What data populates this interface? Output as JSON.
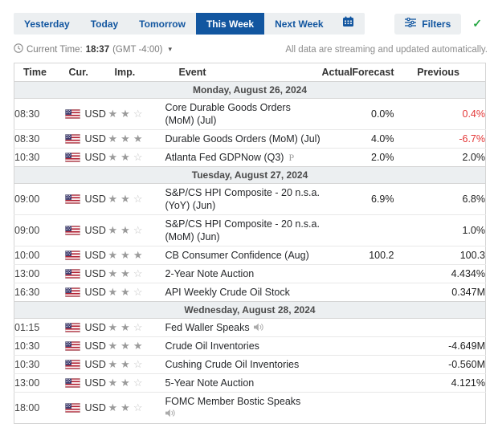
{
  "toolbar": {
    "tabs": [
      {
        "label": "Yesterday",
        "active": false
      },
      {
        "label": "Today",
        "active": false
      },
      {
        "label": "Tomorrow",
        "active": false
      },
      {
        "label": "This Week",
        "active": true
      },
      {
        "label": "Next Week",
        "active": false
      }
    ],
    "filters_label": "Filters",
    "check_glyph": "✓"
  },
  "statusbar": {
    "current_time_label": "Current Time:",
    "time": "18:37",
    "timezone": "(GMT -4:00)",
    "caret_glyph": "▾",
    "note": "All data are streaming and updated automatically."
  },
  "table": {
    "headers": [
      "Time",
      "Cur.",
      "Imp.",
      "Event",
      "Actual",
      "Forecast",
      "Previous"
    ],
    "max_importance": 3,
    "sections": [
      {
        "date": "Monday, August 26, 2024",
        "rows": [
          {
            "time": "08:30",
            "currency": "USD",
            "importance": 2,
            "event": "Core Durable Goods Orders (MoM) (Jul)",
            "marker": null,
            "actual": "",
            "forecast": "0.0%",
            "previous": "0.4%",
            "previous_red": true
          },
          {
            "time": "08:30",
            "currency": "USD",
            "importance": 3,
            "event": "Durable Goods Orders (MoM) (Jul)",
            "marker": null,
            "actual": "",
            "forecast": "4.0%",
            "previous": "-6.7%",
            "previous_red": true
          },
          {
            "time": "10:30",
            "currency": "USD",
            "importance": 2,
            "event": "Atlanta Fed GDPNow (Q3)",
            "marker": "preliminary",
            "actual": "",
            "forecast": "2.0%",
            "previous": "2.0%",
            "previous_red": false
          }
        ]
      },
      {
        "date": "Tuesday, August 27, 2024",
        "rows": [
          {
            "time": "09:00",
            "currency": "USD",
            "importance": 2,
            "event": "S&P/CS HPI Composite - 20 n.s.a. (YoY) (Jun)",
            "marker": null,
            "actual": "",
            "forecast": "6.9%",
            "previous": "6.8%",
            "previous_red": false
          },
          {
            "time": "09:00",
            "currency": "USD",
            "importance": 2,
            "event": "S&P/CS HPI Composite - 20 n.s.a. (MoM) (Jun)",
            "marker": null,
            "actual": "",
            "forecast": "",
            "previous": "1.0%",
            "previous_red": false
          },
          {
            "time": "10:00",
            "currency": "USD",
            "importance": 3,
            "event": "CB Consumer Confidence (Aug)",
            "marker": null,
            "actual": "",
            "forecast": "100.2",
            "previous": "100.3",
            "previous_red": false
          },
          {
            "time": "13:00",
            "currency": "USD",
            "importance": 2,
            "event": "2-Year Note Auction",
            "marker": null,
            "actual": "",
            "forecast": "",
            "previous": "4.434%",
            "previous_red": false
          },
          {
            "time": "16:30",
            "currency": "USD",
            "importance": 2,
            "event": "API Weekly Crude Oil Stock",
            "marker": null,
            "actual": "",
            "forecast": "",
            "previous": "0.347M",
            "previous_red": false
          }
        ]
      },
      {
        "date": "Wednesday, August 28, 2024",
        "rows": [
          {
            "time": "01:15",
            "currency": "USD",
            "importance": 2,
            "event": "Fed Waller Speaks",
            "marker": "speech",
            "actual": "",
            "forecast": "",
            "previous": "",
            "previous_red": false
          },
          {
            "time": "10:30",
            "currency": "USD",
            "importance": 3,
            "event": "Crude Oil Inventories",
            "marker": null,
            "actual": "",
            "forecast": "",
            "previous": "-4.649M",
            "previous_red": false
          },
          {
            "time": "10:30",
            "currency": "USD",
            "importance": 2,
            "event": "Cushing Crude Oil Inventories",
            "marker": null,
            "actual": "",
            "forecast": "",
            "previous": "-0.560M",
            "previous_red": false
          },
          {
            "time": "13:00",
            "currency": "USD",
            "importance": 2,
            "event": "5-Year Note Auction",
            "marker": null,
            "actual": "",
            "forecast": "",
            "previous": "4.121%",
            "previous_red": false
          },
          {
            "time": "18:00",
            "currency": "USD",
            "importance": 2,
            "event": "FOMC Member Bostic Speaks",
            "marker": "speech",
            "marker_newline": true,
            "actual": "",
            "forecast": "",
            "previous": "",
            "previous_red": false
          }
        ]
      }
    ]
  },
  "colors": {
    "accent_blue": "#1256a0",
    "negative_red": "#e33535",
    "check_green": "#28a745",
    "panel_gray": "#eceff1"
  }
}
